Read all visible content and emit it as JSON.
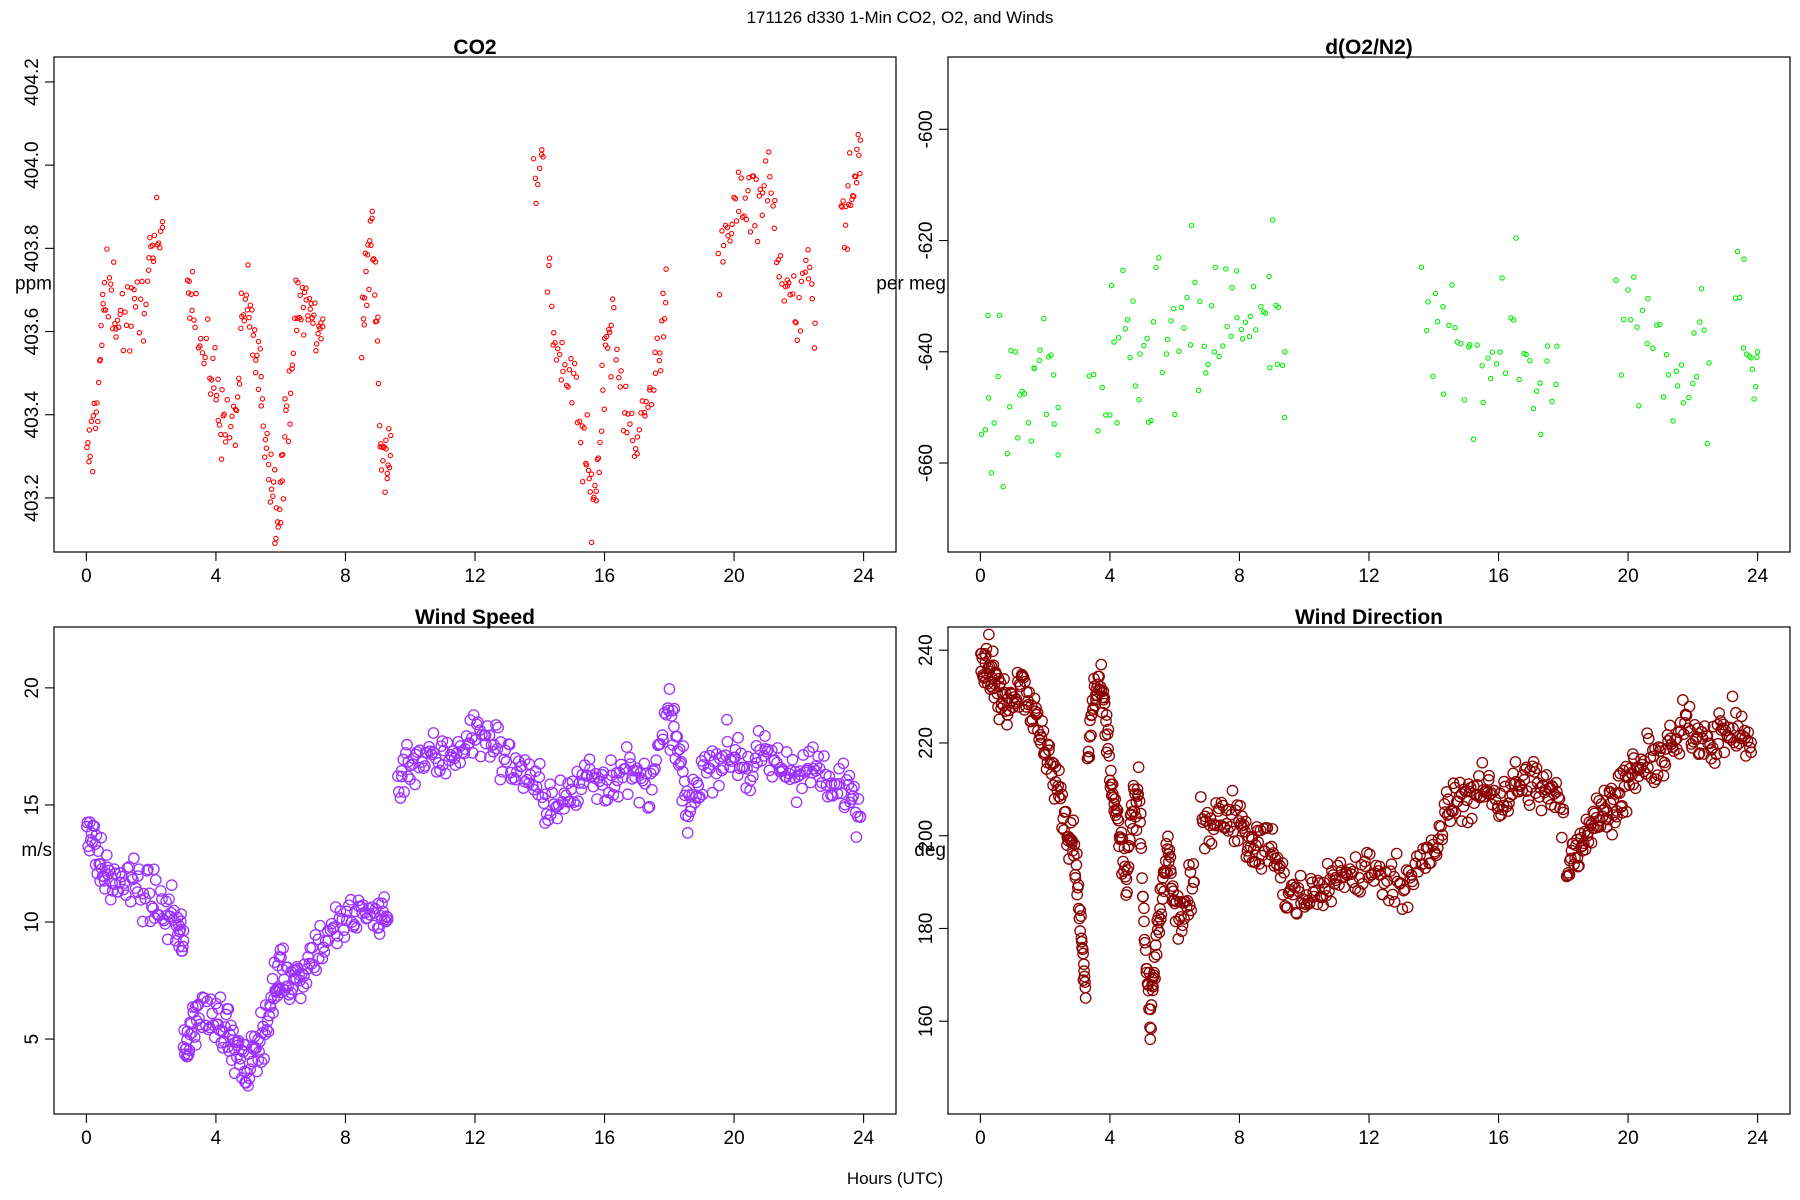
{
  "figure": {
    "title": "171126   d330   1-Min CO2, O2, and Winds",
    "xlabel": "Hours (UTC)"
  },
  "chart_data": [
    {
      "id": "co2",
      "type": "scatter",
      "title": "CO2",
      "xlabel": "",
      "ylabel": "ppm",
      "xlim": [
        -1,
        25
      ],
      "ylim": [
        403.07,
        404.26
      ],
      "xticks": [
        "0",
        "4",
        "8",
        "12",
        "16",
        "20",
        "24"
      ],
      "yticks": [
        "403.2",
        "403.4",
        "403.6",
        "403.8",
        "404.0",
        "404.2"
      ],
      "color": "#ff0000",
      "marker": "small open circle",
      "segments": [
        {
          "x": [
            0.0,
            0.2,
            0.4,
            0.55,
            0.8,
            1.0,
            1.3,
            1.6,
            1.9,
            2.1,
            2.35
          ],
          "y": [
            403.26,
            403.35,
            403.5,
            403.68,
            403.69,
            403.64,
            403.63,
            403.63,
            403.74,
            403.79,
            403.85
          ]
        },
        {
          "x": [
            3.1,
            3.3,
            3.6,
            3.9,
            4.1,
            4.3,
            4.6,
            4.8,
            5.0,
            5.2,
            5.4,
            5.6,
            5.8,
            5.95,
            6.1,
            6.3,
            6.5,
            6.7,
            6.9,
            7.1,
            7.3
          ],
          "y": [
            403.79,
            403.7,
            403.54,
            403.5,
            403.42,
            403.36,
            403.38,
            403.59,
            403.69,
            403.55,
            403.46,
            403.32,
            403.2,
            403.18,
            403.3,
            403.5,
            403.64,
            403.67,
            403.65,
            403.6,
            403.63
          ]
        },
        {
          "x": [
            8.5,
            8.65,
            8.8,
            8.95,
            9.1,
            9.25,
            9.4
          ],
          "y": [
            403.62,
            403.7,
            403.85,
            403.72,
            403.3,
            403.28,
            403.35
          ]
        },
        {
          "x": [
            13.8,
            14.1
          ],
          "y": [
            403.97,
            404.02
          ]
        },
        {
          "x": [
            14.2,
            14.5,
            14.8,
            15.1,
            15.4,
            15.6,
            15.8,
            16.0,
            16.2,
            16.5,
            16.8,
            17.1,
            17.4,
            17.7,
            17.9
          ],
          "y": [
            403.75,
            403.58,
            403.5,
            403.45,
            403.3,
            403.2,
            403.25,
            403.55,
            403.62,
            403.45,
            403.4,
            403.35,
            403.45,
            403.55,
            403.75
          ]
        },
        {
          "x": [
            19.5,
            19.8,
            20.1,
            20.4,
            20.7,
            21.0,
            21.3,
            21.6,
            21.9,
            22.2,
            22.5
          ],
          "y": [
            403.7,
            403.82,
            403.9,
            403.95,
            403.92,
            403.97,
            403.85,
            403.7,
            403.62,
            403.75,
            403.62
          ]
        },
        {
          "x": [
            23.3,
            23.5,
            23.7,
            23.9
          ],
          "y": [
            403.88,
            403.9,
            403.95,
            404.06
          ]
        }
      ],
      "spread": 0.05
    },
    {
      "id": "o2",
      "type": "scatter",
      "title": "d(O2/N2)",
      "xlabel": "",
      "ylabel": "per meg",
      "xlim": [
        -1,
        25
      ],
      "ylim": [
        -676,
        -587
      ],
      "xticks": [
        "0",
        "4",
        "8",
        "12",
        "16",
        "20",
        "24"
      ],
      "yticks": [
        "-660",
        "-640",
        "-620",
        "-600"
      ],
      "color": "#00ee00",
      "marker": "small open circle",
      "segments": [
        {
          "x": [
            0.0,
            0.5,
            1.0,
            1.5,
            2.0,
            2.4
          ],
          "y": [
            -648,
            -650,
            -652,
            -646,
            -644,
            -650
          ]
        },
        {
          "x": [
            3.3,
            4.0,
            4.5,
            5.0,
            5.5,
            6.0,
            6.5,
            7.0,
            7.5,
            8.0,
            8.5,
            9.0,
            9.4
          ],
          "y": [
            -648,
            -645,
            -644,
            -642,
            -640,
            -640,
            -637,
            -638,
            -636,
            -634,
            -633,
            -636,
            -640
          ]
        },
        {
          "x": [
            13.6,
            14.2,
            14.8,
            15.4,
            16.0,
            16.6,
            17.2,
            17.8
          ],
          "y": [
            -642,
            -640,
            -641,
            -638,
            -637,
            -640,
            -643,
            -639
          ]
        },
        {
          "x": [
            19.6,
            20.2,
            20.8,
            21.4,
            22.0,
            22.5
          ],
          "y": [
            -638,
            -634,
            -636,
            -640,
            -638,
            -642
          ]
        },
        {
          "x": [
            23.3,
            23.7,
            24.0
          ],
          "y": [
            -638,
            -636,
            -640
          ]
        }
      ],
      "spread": 8
    },
    {
      "id": "wind_speed",
      "type": "scatter",
      "title": "Wind Speed",
      "xlabel": "",
      "ylabel": "m/s",
      "xlim": [
        -1,
        25
      ],
      "ylim": [
        1.8,
        22.6
      ],
      "xticks": [
        "0",
        "4",
        "8",
        "12",
        "16",
        "20",
        "24"
      ],
      "yticks": [
        "5",
        "10",
        "15",
        "20"
      ],
      "color": "#9b30ff",
      "marker": "open circle",
      "segments": [
        {
          "x": [
            0.0,
            0.3,
            0.6,
            1.0,
            1.5,
            2.0,
            2.4,
            2.8,
            3.0
          ],
          "y": [
            14.5,
            13.0,
            11.8,
            11.7,
            11.6,
            11.0,
            10.5,
            10.0,
            9.2
          ]
        },
        {
          "x": [
            3.0,
            3.2,
            3.5,
            4.0,
            4.3,
            4.6,
            4.9,
            5.2,
            5.5,
            5.8,
            6.0,
            6.3,
            6.6,
            7.0,
            7.5,
            8.0,
            8.5,
            9.0,
            9.3
          ],
          "y": [
            4.0,
            5.5,
            6.0,
            6.0,
            5.6,
            4.5,
            3.5,
            4.5,
            5.5,
            7.0,
            8.0,
            7.5,
            7.8,
            8.7,
            9.5,
            10.0,
            10.3,
            10.4,
            10.2
          ]
        },
        {
          "x": [
            9.6,
            10.0,
            10.5,
            11.0,
            11.5,
            12.0,
            12.5,
            13.0,
            13.5,
            14.0,
            14.5,
            15.0,
            15.5,
            16.0,
            16.5,
            17.0,
            17.5,
            18.0,
            18.3,
            18.6,
            19.0,
            19.5,
            20.0,
            20.5,
            21.0,
            21.5,
            22.0,
            22.5,
            23.0,
            23.5,
            23.9
          ],
          "y": [
            16.0,
            17.0,
            17.0,
            17.0,
            17.5,
            18.0,
            17.8,
            16.8,
            16.5,
            15.5,
            15.0,
            15.3,
            16.5,
            16.0,
            16.5,
            16.0,
            16.0,
            19.0,
            17.0,
            14.5,
            16.5,
            17.0,
            17.2,
            16.5,
            17.0,
            16.5,
            16.5,
            16.5,
            15.5,
            16.0,
            14.5
          ]
        }
      ],
      "spread": 0.55
    },
    {
      "id": "wind_direction",
      "type": "scatter",
      "title": "Wind Direction",
      "xlabel": "",
      "ylabel": "deg",
      "xlim": [
        -1,
        25
      ],
      "ylim": [
        140,
        245
      ],
      "xticks": [
        "0",
        "4",
        "8",
        "12",
        "16",
        "20",
        "24"
      ],
      "yticks": [
        "160",
        "180",
        "200",
        "220",
        "240"
      ],
      "color": "#8b0000",
      "marker": "open circle",
      "segments": [
        {
          "x": [
            0.0,
            0.2,
            0.4,
            0.6,
            0.9,
            1.2,
            1.5,
            1.8,
            2.1,
            2.4,
            2.7,
            2.9,
            3.1,
            3.25
          ],
          "y": [
            240,
            238,
            235,
            229,
            230,
            234,
            230,
            222,
            218,
            210,
            200,
            198,
            180,
            165
          ]
        },
        {
          "x": [
            3.3,
            3.5,
            3.7,
            3.9,
            4.1,
            4.3,
            4.5,
            4.7,
            4.9,
            5.1,
            5.25,
            5.4,
            5.6,
            5.8,
            6.0,
            6.3,
            6.6
          ],
          "y": [
            215,
            230,
            232,
            222,
            208,
            200,
            190,
            205,
            210,
            175,
            160,
            175,
            185,
            198,
            183,
            183,
            190
          ]
        },
        {
          "x": [
            6.8,
            7.2,
            7.6,
            8.0,
            8.3,
            8.6,
            9.0,
            9.4,
            9.8,
            10.2,
            10.6,
            11.0,
            11.5,
            12.0,
            12.5,
            13.0,
            13.5,
            14.0,
            14.4,
            14.8,
            15.2,
            15.6,
            16.0,
            16.4,
            16.8,
            17.2,
            17.6,
            18.0
          ],
          "y": [
            204,
            203,
            204,
            205,
            199,
            197,
            198,
            188,
            186,
            187,
            189,
            191,
            192,
            192,
            191,
            190,
            193,
            196,
            205,
            208,
            209,
            210,
            208,
            210,
            212,
            211,
            209,
            205
          ]
        },
        {
          "x": [
            18.1,
            18.4,
            18.7,
            19.0,
            19.3,
            19.6,
            19.9,
            20.2,
            20.6,
            21.0,
            21.4,
            21.8,
            22.2,
            22.6,
            23.0,
            23.4,
            23.8
          ],
          "y": [
            193,
            197,
            201,
            204,
            205,
            208,
            210,
            214,
            215,
            217,
            219,
            224,
            222,
            221,
            222,
            223,
            218
          ]
        }
      ],
      "spread": 2.6
    }
  ]
}
